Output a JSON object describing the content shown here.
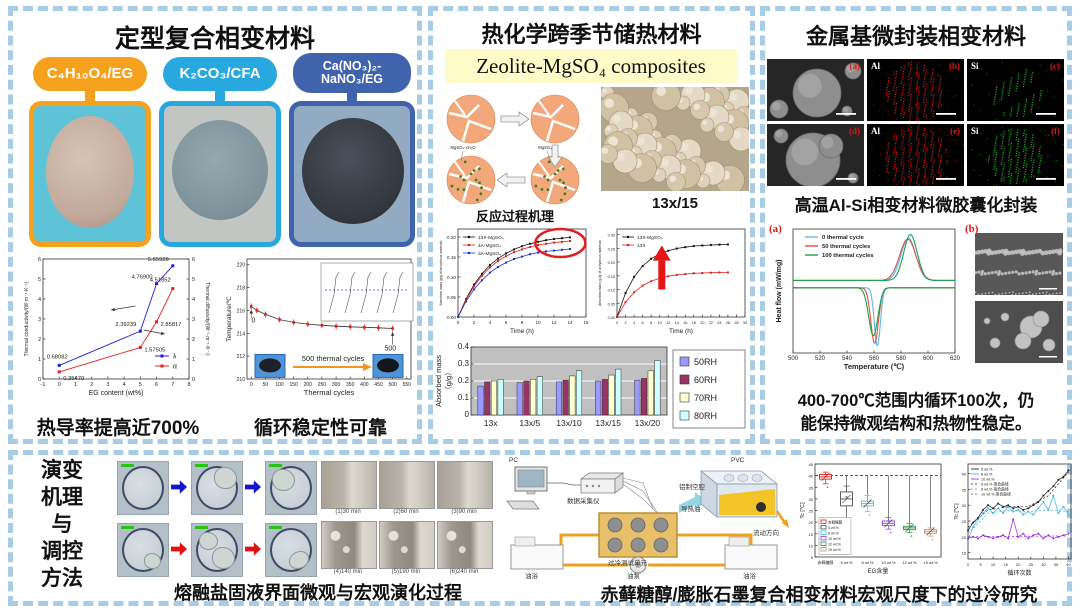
{
  "panel1": {
    "title": "定型复合相变材料",
    "samples": [
      {
        "label": "C₄H₁₀O₄/EG",
        "pill_color": "#F6A11E"
      },
      {
        "label": "K₂CO₃/CFA",
        "pill_color": "#29A8DF"
      },
      {
        "label": "Ca(NO₃)₂-NaNO₃/EG",
        "pill_color": "#4063AE"
      }
    ],
    "caption_left": "热导率提高近700%",
    "caption_right": "循环稳定性可靠"
  },
  "panel2": {
    "title": "热化学跨季节储热材料",
    "banner": "Zeolite-MgSO₄ composites",
    "mechanism_caption": "反应过程机理",
    "mechanism_labels": [
      "MgSO₄·xH₂O",
      "MgSO₄"
    ],
    "beads_caption": "13x/15"
  },
  "panel3": {
    "title": "金属基微封装相变材料",
    "sem_caption": "高温Al-Si相变材料微胶囊化封装",
    "sem_cells": [
      {
        "tag": "(a)",
        "element": ""
      },
      {
        "tag": "(b)",
        "element": "Al"
      },
      {
        "tag": "(c)",
        "element": "Si"
      },
      {
        "tag": "(d)",
        "element": ""
      },
      {
        "tag": "(e)",
        "element": "Al"
      },
      {
        "tag": "(f)",
        "element": "Si"
      }
    ],
    "dsc_label_a": "(a)",
    "dsc_label_b": "(b)",
    "summary_line1": "400-700℃范围内循环100次，仍",
    "summary_line2": "能保持微观结构和热物性稳定。"
  },
  "panel4": {
    "side_title": [
      "演变",
      "机理",
      "与",
      "调控",
      "方法"
    ],
    "micro_caption": "熔融盐固液界面微观与宏观演化过程",
    "macro_times": [
      "(1)30 min",
      "(2)60 min",
      "(3)90 min",
      "(4)140 min",
      "(5)190 min",
      "(6)240 min"
    ],
    "schematic_labels": {
      "pc": "PC",
      "daq": "数据采集仪",
      "unit": "过冷测试单元",
      "pump": "油泵",
      "bath_left": "油浴",
      "bath_right": "油浴",
      "pvc": "PVC",
      "cavity": "铝制空腔",
      "oil": "导热油",
      "flow": "流动方向"
    },
    "supercool_caption": "赤藓糖醇/膨胀石墨复合相变材料宏观尺度下的过冷研究"
  },
  "chart_data": [
    {
      "id": "conductivity",
      "type": "line",
      "title": "",
      "xlabel": "EG content (wt%)",
      "ylabel": "Thermal conductivity/(W·m⁻¹·K⁻¹)",
      "ylabel_right": "Thermal diffusivity/(W⁻¹·m⁻¹·K⁻¹)",
      "xlim": [
        -1,
        8
      ],
      "ylim": [
        0,
        6
      ],
      "x": [
        0,
        5,
        6,
        7
      ],
      "series": [
        {
          "name": "λ",
          "color": "#1f1fd0",
          "values": [
            0.68082,
            2.39239,
            4.769,
            5.65928
          ],
          "labels": [
            "0.68082",
            "2.39239",
            "4.76900",
            "5.65928"
          ]
        },
        {
          "name": "α",
          "color": "#e02020",
          "values": [
            0.3547,
            1.57505,
            2.85817,
            4.51852
          ],
          "labels": [
            "0.35470",
            "1.57505",
            "2.85817",
            "4.51852"
          ]
        }
      ]
    },
    {
      "id": "cycling",
      "type": "line",
      "xlabel": "Thermal cycles",
      "ylabel": "Temperature/℃",
      "xlim": [
        -15,
        565
      ],
      "ylim": [
        210,
        220.5
      ],
      "xticks": [
        0,
        50,
        100,
        150,
        200,
        250,
        300,
        350,
        400,
        450,
        500,
        550
      ],
      "yticks": [
        210,
        212,
        214,
        216,
        218,
        220
      ],
      "points": [
        [
          0,
          216.35
        ],
        [
          20,
          216.0
        ],
        [
          50,
          215.65
        ],
        [
          100,
          215.2
        ],
        [
          150,
          214.95
        ],
        [
          200,
          214.8
        ],
        [
          250,
          214.7
        ],
        [
          300,
          214.62
        ],
        [
          350,
          214.57
        ],
        [
          400,
          214.52
        ],
        [
          450,
          214.48
        ],
        [
          500,
          214.42
        ]
      ],
      "color": "#d82020",
      "annotation_start": "0",
      "annotation_end": "500",
      "overlay_text": "500 thermal cycles"
    },
    {
      "id": "absorption_zeolites",
      "type": "line",
      "xlabel": "Time (h)",
      "ylabel": "Absorbed mass (g/g of anhydrous material)",
      "xlim": [
        0,
        16
      ],
      "ylim": [
        0,
        0.22
      ],
      "series": [
        {
          "name": "13X-MgSO₄",
          "color": "#111111",
          "x": [
            0,
            1,
            2,
            3,
            4,
            5,
            6,
            7,
            8,
            9,
            10,
            11,
            12,
            13,
            14
          ],
          "y": [
            0,
            0.045,
            0.081,
            0.108,
            0.13,
            0.146,
            0.159,
            0.169,
            0.177,
            0.183,
            0.188,
            0.192,
            0.195,
            0.197,
            0.199
          ]
        },
        {
          "name": "4A-MgSO₄",
          "color": "#d82020",
          "x": [
            0,
            1,
            2,
            3,
            4,
            5,
            6,
            7,
            8,
            9,
            10,
            11,
            12,
            13,
            14
          ],
          "y": [
            0,
            0.043,
            0.077,
            0.103,
            0.124,
            0.14,
            0.152,
            0.162,
            0.169,
            0.175,
            0.18,
            0.183,
            0.186,
            0.188,
            0.19
          ]
        },
        {
          "name": "3A-MgSO₄",
          "color": "#2030cc",
          "x": [
            0,
            1,
            2,
            3,
            4,
            5,
            6,
            7,
            8,
            9,
            10,
            11,
            12,
            13,
            14
          ],
          "y": [
            0,
            0.039,
            0.069,
            0.092,
            0.111,
            0.125,
            0.136,
            0.145,
            0.151,
            0.157,
            0.161,
            0.164,
            0.166,
            0.168,
            0.17
          ]
        }
      ]
    },
    {
      "id": "absorption_13x",
      "type": "line",
      "xlabel": "Time (h)",
      "ylabel": "Absorbed mass (g /g of anhydrous material)",
      "xlim": [
        0,
        30
      ],
      "ylim": [
        0,
        0.32
      ],
      "series": [
        {
          "name": "13X-MgSO₄",
          "color": "#111111",
          "x": [
            0,
            2,
            4,
            6,
            8,
            10,
            12,
            14,
            16,
            18,
            20,
            22,
            24,
            26
          ],
          "y": [
            0,
            0.087,
            0.146,
            0.185,
            0.212,
            0.229,
            0.241,
            0.249,
            0.254,
            0.258,
            0.26,
            0.262,
            0.263,
            0.264
          ]
        },
        {
          "name": "13X",
          "color": "#d82020",
          "x": [
            0,
            2,
            4,
            6,
            8,
            10,
            12,
            14,
            16,
            18,
            20,
            22,
            24,
            26
          ],
          "y": [
            0,
            0.054,
            0.09,
            0.114,
            0.13,
            0.141,
            0.148,
            0.153,
            0.156,
            0.159,
            0.16,
            0.161,
            0.162,
            0.162
          ]
        }
      ]
    },
    {
      "id": "humidity_bars",
      "type": "bar",
      "categories": [
        "13x",
        "13x/5",
        "13x/10",
        "13x/15",
        "13x/20"
      ],
      "series": [
        {
          "name": "50RH",
          "color": "#9999FF",
          "values": [
            0.17,
            0.19,
            0.195,
            0.2,
            0.205
          ]
        },
        {
          "name": "60RH",
          "color": "#993366",
          "values": [
            0.195,
            0.2,
            0.205,
            0.21,
            0.215
          ]
        },
        {
          "name": "70RH",
          "color": "#FFFFCC",
          "values": [
            0.2,
            0.21,
            0.23,
            0.235,
            0.26
          ]
        },
        {
          "name": "80RH",
          "color": "#CCFFFF",
          "values": [
            0.21,
            0.225,
            0.26,
            0.27,
            0.32
          ]
        }
      ],
      "ylabel": "Absorbed mass（g/g）",
      "ylim": [
        0,
        0.4
      ],
      "yticks": [
        0,
        0.1,
        0.2,
        0.3,
        0.4
      ],
      "plot_bg": "#C0C0C0"
    },
    {
      "id": "dsc",
      "type": "line",
      "xlabel": "Temperature (℃)",
      "ylabel": "Heat flow (mW/mg)",
      "xlim": [
        500,
        620
      ],
      "ylim": [
        -1.4,
        1.3
      ],
      "xticks": [
        500,
        520,
        540,
        560,
        580,
        600,
        620
      ],
      "baseline_top": 0.18,
      "baseline_bottom": 0.02,
      "series": [
        {
          "name": "0 thermal cycle",
          "color": "#58b8f0",
          "peak": 585.5,
          "peak_amp": 0.92,
          "peak_w": 5.5,
          "dip": 562.5,
          "dip_amp": -1.28,
          "dip_w": 2.2
        },
        {
          "name": "50 thermal cycles",
          "color": "#e05050",
          "peak": 585.0,
          "peak_amp": 0.9,
          "peak_w": 6.0,
          "dip": 560.5,
          "dip_amp": -1.22,
          "dip_w": 2.8
        },
        {
          "name": "100 thermal cycles",
          "color": "#1e9e46",
          "peak": 587.0,
          "peak_amp": 1.0,
          "peak_w": 5.0,
          "dip": 559.5,
          "dip_amp": -1.05,
          "dip_w": 3.4
        }
      ]
    },
    {
      "id": "supercooling_box",
      "type": "box",
      "xlabel": "EG含量",
      "ylabel": "Tc [℃]",
      "ylim": [
        5,
        45
      ],
      "refline": 40,
      "categories": [
        "赤藓糖醇",
        "5 wt.%",
        "8 wt.%",
        "10 wt.%",
        "12 wt.%",
        "15 wt.%"
      ],
      "colors": [
        "#e03030",
        "#606060",
        "#58c8e8",
        "#9858d0",
        "#38a858",
        "#c8a078"
      ],
      "lo": [
        36.5,
        21.0,
        24.5,
        17.0,
        15.5,
        14.0
      ],
      "q1": [
        38.5,
        27.0,
        27.0,
        18.5,
        16.8,
        15.2
      ],
      "med": [
        39.5,
        30.0,
        28.0,
        19.5,
        17.5,
        16.0
      ],
      "q3": [
        40.5,
        33.0,
        29.0,
        20.5,
        18.2,
        16.8
      ],
      "hi": [
        41.5,
        35.5,
        31.5,
        22.0,
        19.5,
        17.5
      ]
    },
    {
      "id": "supercooling_cycles",
      "type": "line",
      "xlabel": "循环次数",
      "ylabel": "Tc [℃]",
      "xlim": [
        0,
        41
      ],
      "ylim": [
        13,
        43
      ],
      "xticks": [
        0,
        5,
        10,
        15,
        20,
        25,
        30,
        35,
        40
      ],
      "yticks": [
        15,
        20,
        25,
        30,
        35,
        40
      ],
      "legend": [
        "5 wt.%",
        "8 wt.%",
        "10 wt.%",
        "5 wt.% 拟合曲线",
        "8 wt.% 拟合曲线",
        "10 wt.% 拟合曲线"
      ],
      "legend_colors": [
        "#181818",
        "#38b0e0",
        "#9820e0",
        "#181818",
        "#38b0e0",
        "#9820e0"
      ],
      "series": [
        {
          "name": "5 wt.%",
          "color": "#181818",
          "points": [
            [
              0,
              22
            ],
            [
              2,
              24.5
            ],
            [
              4,
              26
            ],
            [
              6,
              28.5
            ],
            [
              8,
              30
            ],
            [
              10,
              29
            ],
            [
              12,
              30.5
            ],
            [
              14,
              29.5
            ],
            [
              16,
              30
            ],
            [
              18,
              29
            ],
            [
              20,
              29.5
            ],
            [
              22,
              28.5
            ],
            [
              24,
              29
            ],
            [
              26,
              30
            ],
            [
              28,
              31
            ],
            [
              30,
              33
            ],
            [
              32,
              34.5
            ],
            [
              34,
              36
            ],
            [
              36,
              38
            ],
            [
              38,
              39
            ],
            [
              40,
              41
            ]
          ]
        },
        {
          "name": "8 wt.%",
          "color": "#38b0e0",
          "points": [
            [
              0,
              19
            ],
            [
              2,
              23
            ],
            [
              4,
              25.5
            ],
            [
              6,
              27.5
            ],
            [
              8,
              29
            ],
            [
              10,
              27.5
            ],
            [
              12,
              29
            ],
            [
              14,
              27.5
            ],
            [
              16,
              29.5
            ],
            [
              18,
              28
            ],
            [
              20,
              28.5
            ],
            [
              22,
              27
            ],
            [
              24,
              28
            ],
            [
              26,
              27
            ],
            [
              28,
              29
            ],
            [
              30,
              31
            ],
            [
              32,
              28.5
            ],
            [
              34,
              33
            ],
            [
              36,
              27.5
            ],
            [
              38,
              29.5
            ],
            [
              40,
              27
            ]
          ]
        },
        {
          "name": "10 wt.%",
          "color": "#9820e0",
          "points": [
            [
              0,
              19.5
            ],
            [
              2,
              20
            ],
            [
              4,
              19.5
            ],
            [
              6,
              20.5
            ],
            [
              8,
              20
            ],
            [
              10,
              19.5
            ],
            [
              12,
              20
            ],
            [
              14,
              20.5
            ],
            [
              16,
              19.5
            ],
            [
              18,
              25.5
            ],
            [
              20,
              20
            ],
            [
              22,
              21
            ],
            [
              24,
              19.5
            ],
            [
              26,
              20.5
            ],
            [
              28,
              21
            ],
            [
              30,
              19.5
            ],
            [
              32,
              20.5
            ],
            [
              34,
              19.5
            ],
            [
              36,
              20
            ],
            [
              38,
              20.5
            ],
            [
              40,
              21
            ]
          ]
        }
      ],
      "fits": [
        {
          "color": "#181818",
          "points": [
            [
              0,
              23
            ],
            [
              8,
              28.5
            ],
            [
              16,
              29.5
            ],
            [
              24,
              29.5
            ],
            [
              32,
              33
            ],
            [
              40,
              40.5
            ]
          ]
        },
        {
          "color": "#38b0e0",
          "points": [
            [
              0,
              21
            ],
            [
              8,
              27.5
            ],
            [
              16,
              28.3
            ],
            [
              24,
              28
            ],
            [
              32,
              28.5
            ],
            [
              40,
              28
            ]
          ]
        },
        {
          "color": "#9820e0",
          "points": [
            [
              0,
              20
            ],
            [
              40,
              20.3
            ]
          ]
        }
      ]
    }
  ]
}
